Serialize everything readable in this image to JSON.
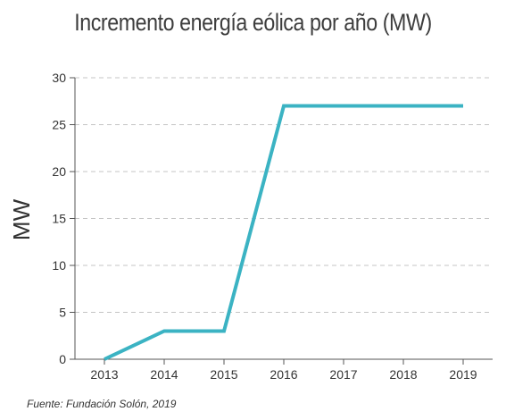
{
  "chart_data": {
    "type": "line",
    "title": "Incremento energía eólica por año (MW)",
    "ylabel": "MW",
    "xlabel": "",
    "ylim": [
      0,
      30
    ],
    "yticks": [
      0,
      5,
      10,
      15,
      20,
      25,
      30
    ],
    "categories": [
      "2013",
      "2014",
      "2015",
      "2016",
      "2017",
      "2018",
      "2019"
    ],
    "series": [
      {
        "values": [
          0,
          3,
          3,
          27,
          27,
          27,
          27
        ]
      }
    ],
    "grid": true,
    "color": "#3bb3c3"
  },
  "source": "Fuente: Fundación Solón, 2019"
}
